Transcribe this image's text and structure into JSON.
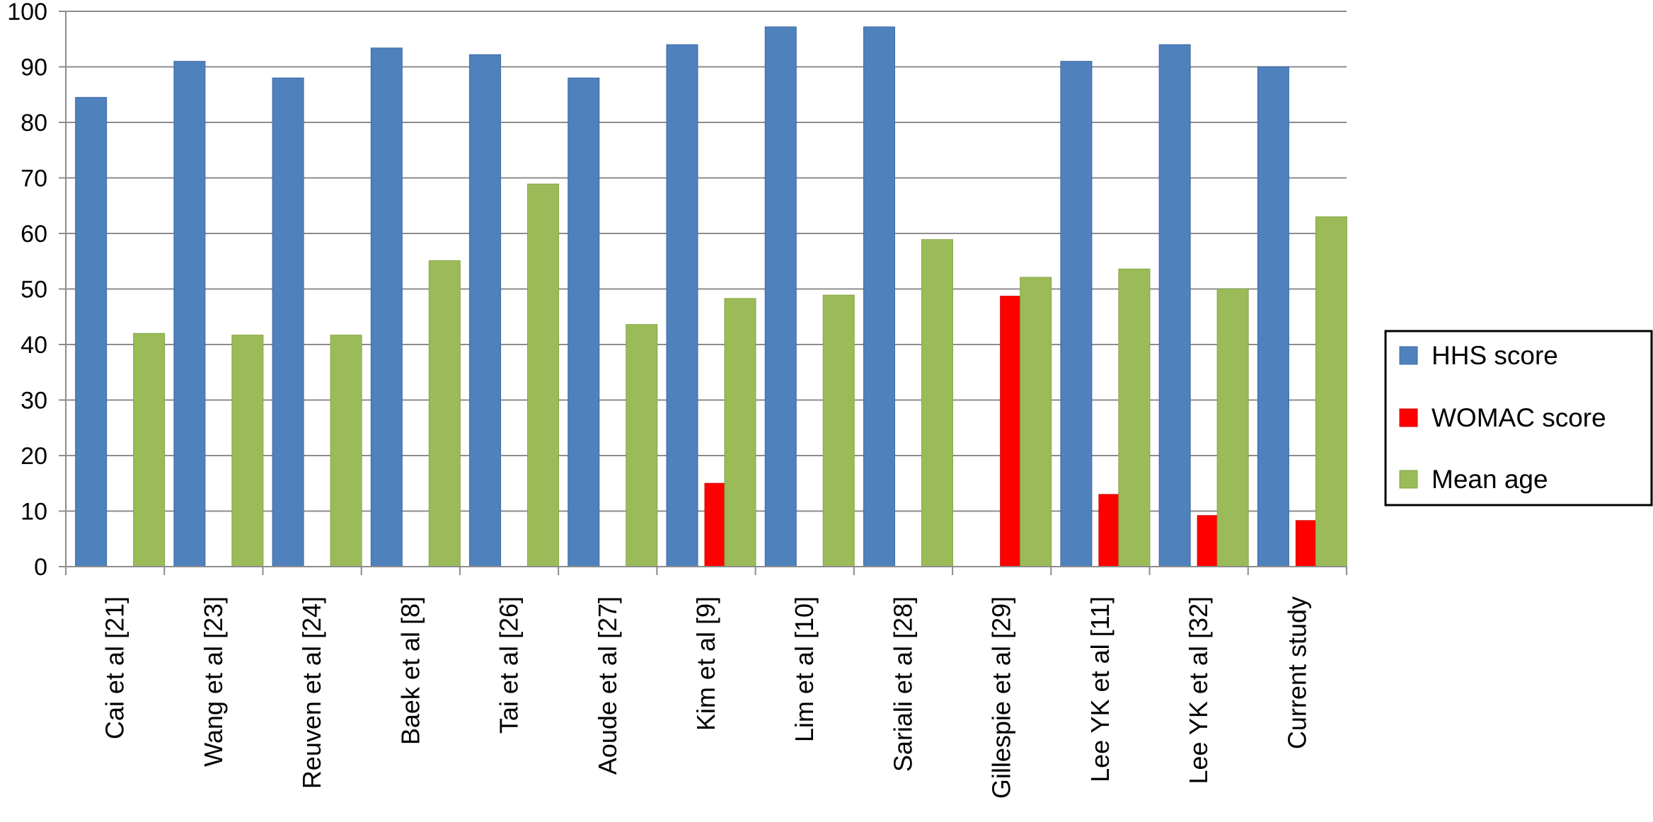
{
  "chart_data": {
    "type": "bar",
    "title": "",
    "xlabel": "",
    "ylabel": "",
    "ylim": [
      0,
      100
    ],
    "yticks": [
      0,
      10,
      20,
      30,
      40,
      50,
      60,
      70,
      80,
      90,
      100
    ],
    "grid": true,
    "legend_position": "right",
    "categories": [
      "Cai et al [21]",
      "Wang et al [23]",
      "Reuven et al [24]",
      "Baek et al [8]",
      "Tai et al [26]",
      "Aoude et al [27]",
      "Kim et al [9]",
      "Lim et al [10]",
      "Sariali et al [28]",
      "Gillespie et al [29]",
      "Lee YK et al [11]",
      "Lee YK et al [32]",
      "Current study"
    ],
    "series": [
      {
        "name": "HHS score",
        "color": "#4f81bd",
        "values": [
          84.5,
          91,
          88,
          93.4,
          92.2,
          88,
          94,
          97.2,
          97.2,
          null,
          91,
          94,
          90
        ]
      },
      {
        "name": "WOMAC score",
        "color": "#ff0000",
        "values": [
          null,
          null,
          null,
          null,
          null,
          null,
          15,
          null,
          null,
          48.7,
          13,
          9.2,
          8.3
        ]
      },
      {
        "name": "Mean age",
        "color": "#9bbb59",
        "values": [
          42,
          41.7,
          41.7,
          55.1,
          68.9,
          43.6,
          48.3,
          48.9,
          58.9,
          52.1,
          53.6,
          50,
          63
        ]
      }
    ]
  }
}
